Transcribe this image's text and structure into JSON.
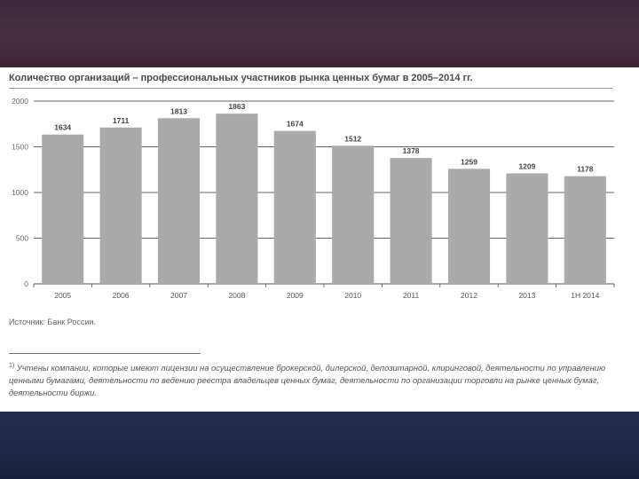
{
  "chart_data": {
    "type": "bar",
    "title": "Количество организаций – профессиональных участников рынка ценных бумаг в 2005–2014 гг.",
    "categories": [
      "2005",
      "2006",
      "2007",
      "2008",
      "2009",
      "2010",
      "2011",
      "2012",
      "2013",
      "1H 2014"
    ],
    "values": [
      1634,
      1711,
      1813,
      1863,
      1674,
      1512,
      1378,
      1259,
      1209,
      1178
    ],
    "value_labels": [
      "1634",
      "1711",
      "1813",
      "1863",
      "1674",
      "1512",
      "1378",
      "1259",
      "1209",
      "1178"
    ],
    "yticks": [
      "0",
      "500",
      "1000",
      "1500",
      "2000"
    ],
    "ylim": [
      0,
      2000
    ],
    "grid": true,
    "bar_color": "#aaaaaa"
  },
  "source": "Источник: Банк России.",
  "footnote": {
    "marker": "1)",
    "text": "Учтены компании, которые имеют лицензии на осуществление брокерской, дилерской, депозитарной, клиринговой, деятельности по управлению ценными бумагами, деятельности по ведению реестра владельцев ценных бумаг, деятельности по организации торговли на рынке ценных бумаг, деятельности биржи."
  }
}
